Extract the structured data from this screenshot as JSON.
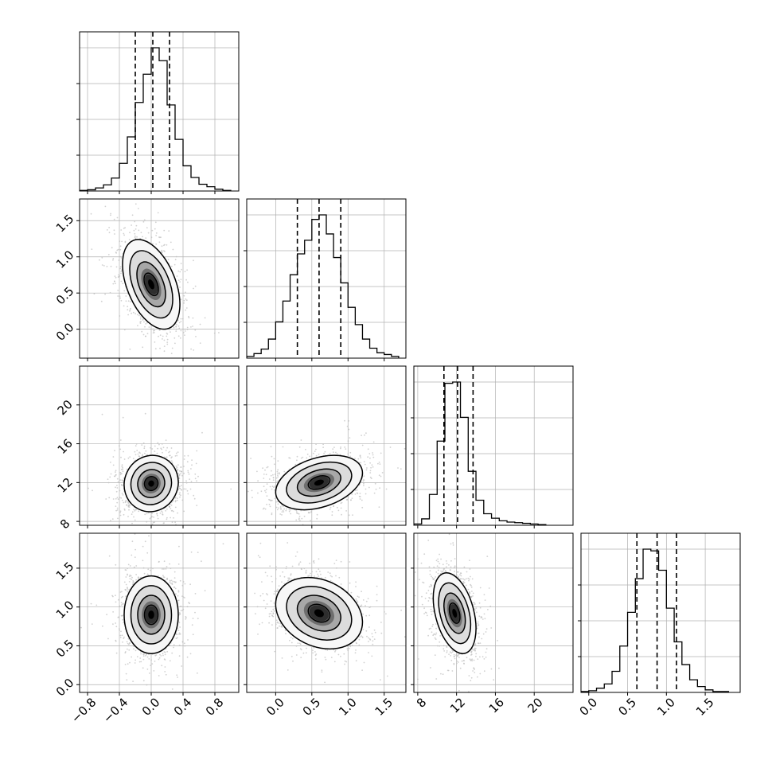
{
  "chart_data": {
    "type": "corner",
    "variables": [
      {
        "index": 0,
        "range": [
          -0.9,
          1.1
        ],
        "ticks": [
          -0.8,
          -0.4,
          0.0,
          0.4,
          0.8
        ],
        "tick_labels": [
          "−0.8",
          "−0.4",
          "0.0",
          "0.4",
          "0.8"
        ],
        "quantiles": [
          -0.2,
          0.02,
          0.23
        ],
        "hist_edges": [
          -0.9,
          -0.8,
          -0.7,
          -0.6,
          -0.5,
          -0.4,
          -0.3,
          -0.2,
          -0.1,
          0.0,
          0.1,
          0.2,
          0.3,
          0.4,
          0.5,
          0.6,
          0.7,
          0.8,
          0.9,
          1.0
        ],
        "hist_counts": [
          1,
          2,
          5,
          10,
          21,
          45,
          88,
          144,
          190,
          233,
          212,
          140,
          84,
          41,
          22,
          11,
          7,
          3,
          1
        ]
      },
      {
        "index": 1,
        "range": [
          -0.4,
          1.8
        ],
        "ticks": [
          0.0,
          0.5,
          1.0,
          1.5
        ],
        "tick_labels": [
          "0.0",
          "0.5",
          "1.0",
          "1.5"
        ],
        "quantiles": [
          0.3,
          0.6,
          0.9
        ],
        "hist_edges": [
          -0.4,
          -0.3,
          -0.2,
          -0.1,
          0.0,
          0.1,
          0.2,
          0.3,
          0.4,
          0.5,
          0.6,
          0.7,
          0.8,
          0.9,
          1.0,
          1.1,
          1.2,
          1.3,
          1.4,
          1.5,
          1.6,
          1.7,
          1.8
        ],
        "hist_counts": [
          2,
          5,
          10,
          21,
          40,
          63,
          92,
          115,
          130,
          153,
          158,
          137,
          111,
          83,
          56,
          37,
          21,
          11,
          6,
          4,
          2
        ]
      },
      {
        "index": 2,
        "range": [
          7.6,
          24.0
        ],
        "ticks": [
          8,
          12,
          16,
          20
        ],
        "tick_labels": [
          "8",
          "12",
          "16",
          "20"
        ],
        "quantiles": [
          10.7,
          12.1,
          13.7
        ],
        "hist_edges": [
          7.6,
          8.4,
          9.2,
          10.0,
          10.8,
          11.6,
          12.4,
          13.2,
          14.0,
          14.8,
          15.6,
          16.4,
          17.2,
          18.0,
          18.8,
          19.6,
          20.4,
          21.2,
          22.0
        ],
        "hist_counts": [
          2,
          10,
          48,
          131,
          221,
          223,
          168,
          84,
          39,
          18,
          11,
          7,
          5,
          4,
          3,
          2,
          1
        ]
      },
      {
        "index": 3,
        "range": [
          -0.1,
          1.95
        ],
        "ticks": [
          0.0,
          0.5,
          1.0,
          1.5
        ],
        "tick_labels": [
          "0.0",
          "0.5",
          "1.0",
          "1.5"
        ],
        "quantiles": [
          0.62,
          0.88,
          1.13
        ],
        "hist_edges": [
          -0.1,
          0.0,
          0.1,
          0.2,
          0.3,
          0.4,
          0.5,
          0.6,
          0.7,
          0.8,
          0.9,
          1.0,
          1.1,
          1.2,
          1.3,
          1.4,
          1.5,
          1.6,
          1.7,
          1.8
        ],
        "hist_counts": [
          1,
          2,
          5,
          10,
          25,
          55,
          95,
          135,
          170,
          168,
          145,
          100,
          60,
          33,
          15,
          7,
          3,
          1,
          1
        ]
      }
    ],
    "pairs": [
      {
        "x_var": 0,
        "y_var": 1,
        "mean": [
          0.0,
          0.62
        ],
        "sd": [
          0.18,
          0.31
        ],
        "rho": -0.45
      },
      {
        "x_var": 0,
        "y_var": 2,
        "mean": [
          0.0,
          11.9
        ],
        "sd": [
          0.17,
          1.45
        ],
        "rho": 0.05
      },
      {
        "x_var": 1,
        "y_var": 2,
        "mean": [
          0.6,
          12.0
        ],
        "sd": [
          0.3,
          1.4
        ],
        "rho": 0.35
      },
      {
        "x_var": 0,
        "y_var": 3,
        "mean": [
          0.0,
          0.9
        ],
        "sd": [
          0.17,
          0.25
        ],
        "rho": 0.0
      },
      {
        "x_var": 1,
        "y_var": 3,
        "mean": [
          0.6,
          0.92
        ],
        "sd": [
          0.3,
          0.23
        ],
        "rho": -0.25
      },
      {
        "x_var": 2,
        "y_var": 3,
        "mean": [
          11.8,
          0.92
        ],
        "sd": [
          1.1,
          0.26
        ],
        "rho": -0.38
      }
    ],
    "contour_levels_sigma": [
      0.5,
      1.0,
      1.5,
      2.0
    ],
    "grid": true,
    "colors": {
      "scatter": "#bdbdbd",
      "line": "#000000",
      "grid": "#b0b0b0",
      "density_dark": "#000000",
      "density_light": "#ffffff"
    }
  }
}
